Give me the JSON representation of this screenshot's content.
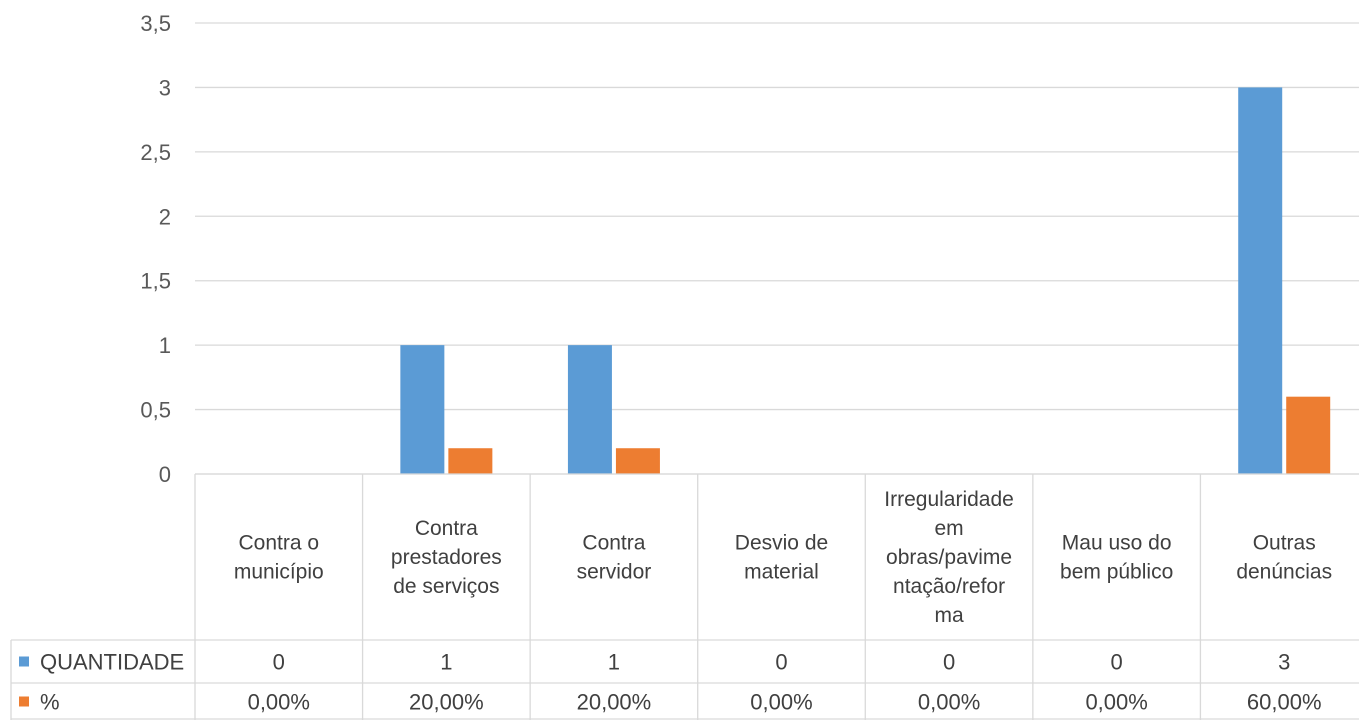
{
  "chart_data": {
    "type": "bar",
    "categories": [
      [
        "Contra o",
        "município"
      ],
      [
        "Contra",
        "prestadores",
        "de serviços"
      ],
      [
        "Contra",
        "servidor"
      ],
      [
        "Desvio de",
        "material"
      ],
      [
        "Irregularidade",
        "em",
        "obras/pavime",
        "ntação/refor",
        "ma"
      ],
      [
        "Mau uso do",
        "bem público"
      ],
      [
        "Outras",
        "denúncias"
      ]
    ],
    "series": [
      {
        "name": "QUANTIDADE",
        "color": "#5B9BD5",
        "values": [
          0,
          1,
          1,
          0,
          0,
          0,
          3
        ],
        "table_values": [
          "0",
          "1",
          "1",
          "0",
          "0",
          "0",
          "3"
        ]
      },
      {
        "name": "%",
        "color": "#ED7D31",
        "values": [
          0,
          0.2,
          0.2,
          0,
          0,
          0,
          0.6
        ],
        "table_values": [
          "0,00%",
          "20,00%",
          "20,00%",
          "0,00%",
          "0,00%",
          "0,00%",
          "60,00%"
        ]
      }
    ],
    "y_ticks": [
      "0",
      "0,5",
      "1",
      "1,5",
      "2",
      "2,5",
      "3",
      "3,5"
    ],
    "ylim": [
      0,
      3.5
    ],
    "grid": true,
    "legend": "data-table-bottom-left"
  }
}
